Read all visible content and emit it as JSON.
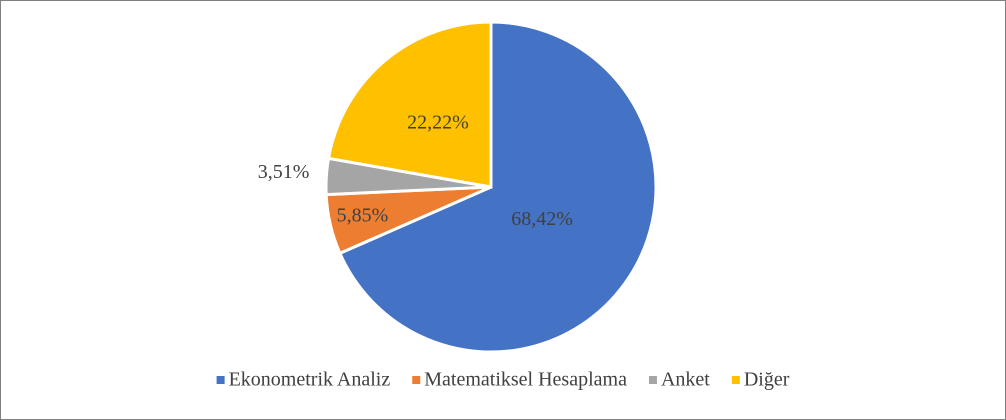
{
  "chart_data": {
    "type": "pie",
    "categories": [
      "Ekonometrik Analiz",
      "Matematiksel Hesaplama",
      "Anket",
      "Diğer"
    ],
    "values": [
      68.42,
      5.85,
      3.51,
      22.22
    ],
    "value_labels": [
      "68,42%",
      "5,85%",
      "3,51%",
      "22,22%"
    ],
    "colors": [
      "#4472c4",
      "#ed7d31",
      "#a5a5a5",
      "#ffc000"
    ],
    "legend": "bottom"
  }
}
